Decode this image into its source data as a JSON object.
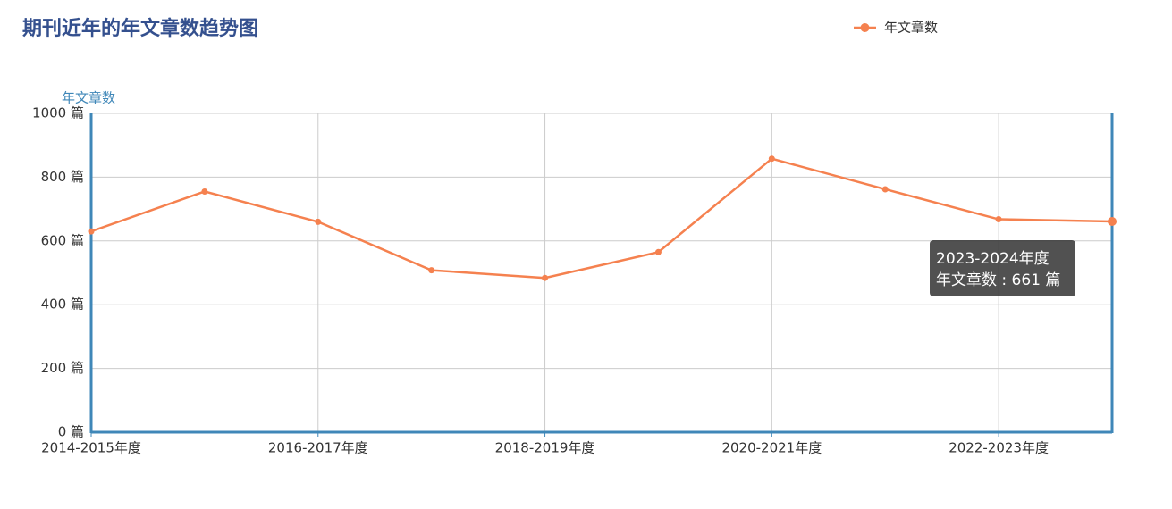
{
  "chart_data": {
    "type": "line",
    "title": "期刊近年的年文章数趋势图",
    "y_axis_name": "年文章数",
    "categories": [
      "2014-2015年度",
      null,
      "2016-2017年度",
      null,
      "2018-2019年度",
      null,
      "2020-2021年度",
      null,
      "2022-2023年度",
      null
    ],
    "series": [
      {
        "name": "年文章数",
        "color": "#f5814f",
        "values": [
          630,
          755,
          660,
          508,
          484,
          565,
          858,
          762,
          668,
          661
        ]
      }
    ],
    "ylim": [
      0,
      1000
    ],
    "yticks": [
      {
        "value": 0,
        "label": "0 篇"
      },
      {
        "value": 200,
        "label": "200 篇"
      },
      {
        "value": 400,
        "label": "400 篇"
      },
      {
        "value": 600,
        "label": "600 篇"
      },
      {
        "value": 800,
        "label": "800 篇"
      },
      {
        "value": 1000,
        "label": "1000 篇"
      }
    ],
    "grid": true,
    "legend": "top-right",
    "tooltip": {
      "title": "2023-2024年度",
      "text": "年文章数 : 661 篇"
    }
  }
}
